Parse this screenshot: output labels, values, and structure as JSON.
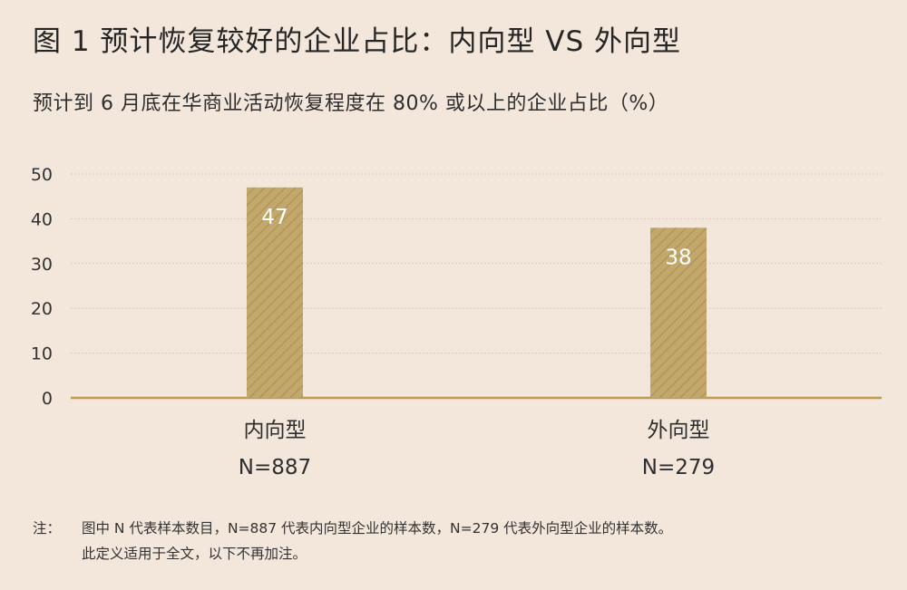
{
  "header": {
    "title": "图 1   预计恢复较好的企业占比：内向型 VS 外向型",
    "subtitle": "预计到 6 月底在华商业活动恢复程度在 80% 或以上的企业占比（%）"
  },
  "colors": {
    "background": "#f3e6da",
    "bar_fill": "#c3a86d",
    "bar_stripe": "#b29656",
    "axis_line": "#c09a4e",
    "gridline": "#d8ccc0"
  },
  "chart_data": {
    "type": "bar",
    "title": "",
    "xlabel": "",
    "ylabel": "",
    "ylim": [
      0,
      50
    ],
    "yticks": [
      "0",
      "10",
      "20",
      "30",
      "40",
      "50"
    ],
    "grid": true,
    "categories": [
      "内向型",
      "外向型"
    ],
    "sample_sizes": [
      "N=887",
      "N=279"
    ],
    "values": [
      47,
      38
    ],
    "data_labels": [
      "47",
      "38"
    ]
  },
  "note": {
    "label": "注：",
    "line1": "图中 N 代表样本数目，N=887 代表内向型企业的样本数，N=279 代表外向型企业的样本数。",
    "line2": "此定义适用于全文，以下不再加注。"
  }
}
